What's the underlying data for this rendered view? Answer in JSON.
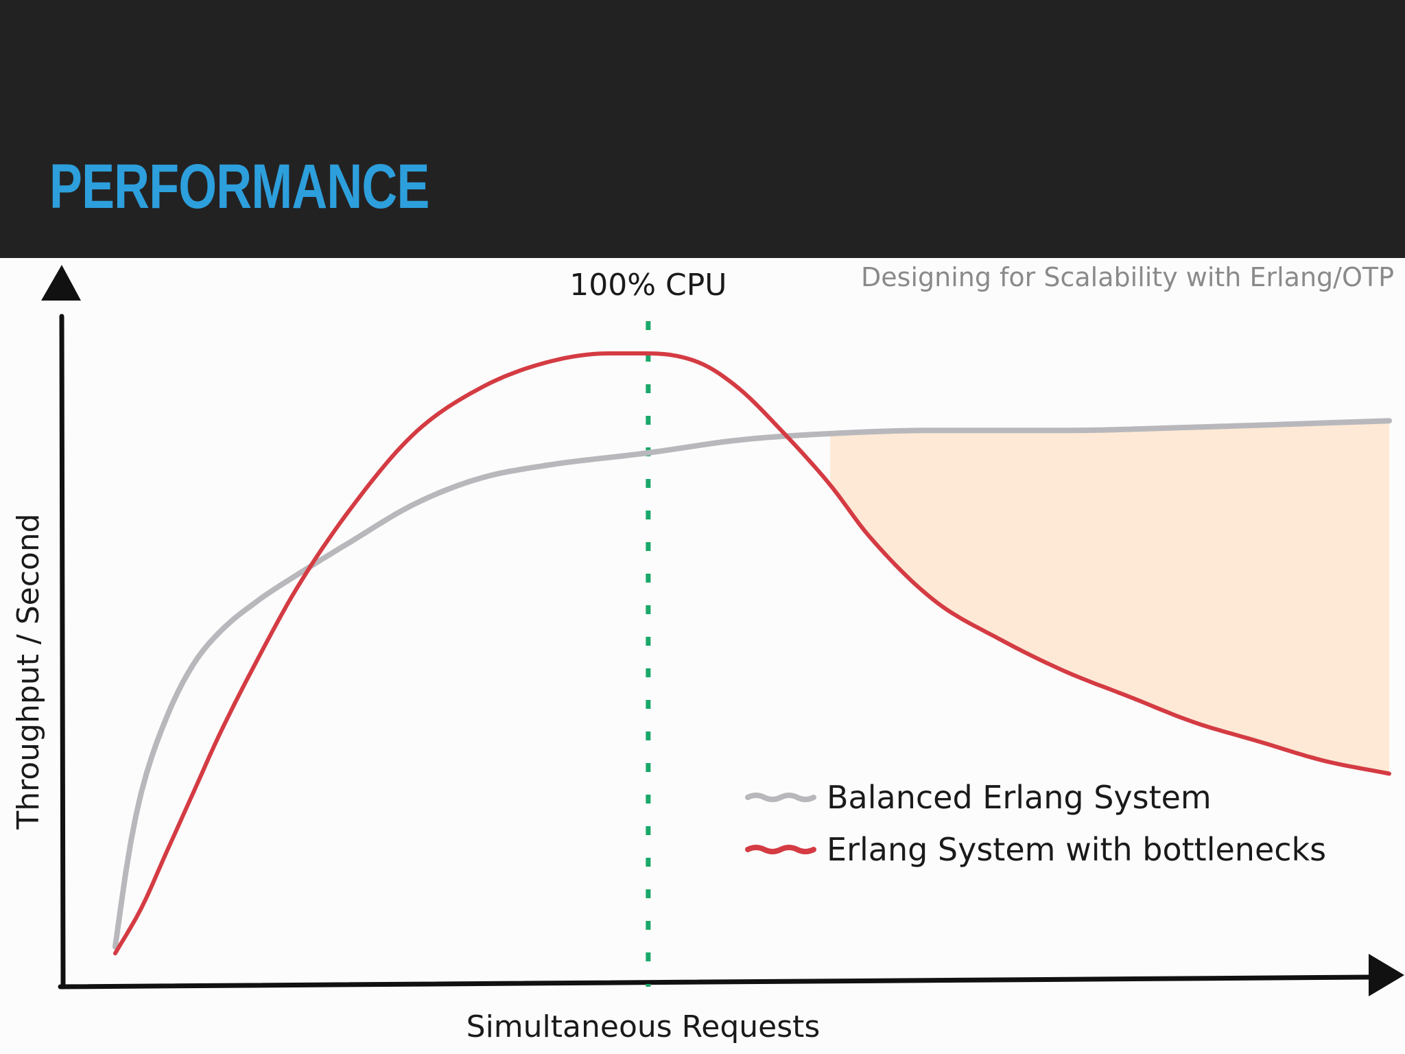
{
  "slide": {
    "title": "PERFORMANCE",
    "source_caption": "Designing for Scalability with Erlang/OTP"
  },
  "colors": {
    "header_background": "#232223",
    "title": "#2d9fdc",
    "balanced_series": "#b8b8bc",
    "bottleneck_series": "#d43b43",
    "cpu_marker": "#1aa86a",
    "gap_fill": "#fde9d5"
  },
  "chart_data": {
    "type": "line",
    "title": "",
    "xlabel": "Simultaneous Requests",
    "ylabel": "Throughput / Second",
    "xlim": [
      0,
      100
    ],
    "ylim": [
      0,
      100
    ],
    "grid": false,
    "legend_position": "bottom-right",
    "annotations": [
      {
        "text": "100% CPU",
        "x": 43,
        "style": "dashed-vertical-marker"
      }
    ],
    "shaded_region": {
      "between": [
        "Erlang System with bottlenecks",
        "Balanced Erlang System"
      ],
      "x_from": 57,
      "x_to": 100
    },
    "series": [
      {
        "name": "Balanced Erlang System",
        "x": [
          2,
          3,
          4,
          6,
          8,
          10,
          13,
          16,
          20,
          25,
          30,
          35,
          43,
          50,
          57,
          65,
          75,
          85,
          100
        ],
        "y": [
          6,
          20,
          30,
          42,
          50,
          55,
          60,
          64,
          69,
          75,
          79,
          81,
          83,
          85,
          86,
          86.5,
          86.5,
          87,
          88
        ]
      },
      {
        "name": "Erlang System with bottlenecks",
        "x": [
          2,
          4,
          6,
          8,
          10,
          13,
          16,
          20,
          25,
          30,
          35,
          40,
          43,
          47,
          50,
          53,
          57,
          60,
          65,
          70,
          75,
          80,
          85,
          90,
          95,
          100
        ],
        "y": [
          5,
          12,
          21,
          30,
          39,
          51,
          62,
          74,
          86,
          93,
          97,
          98.5,
          98.5,
          97,
          93,
          87,
          78,
          70,
          60,
          54,
          49,
          45,
          41,
          38,
          35,
          33
        ]
      }
    ]
  }
}
